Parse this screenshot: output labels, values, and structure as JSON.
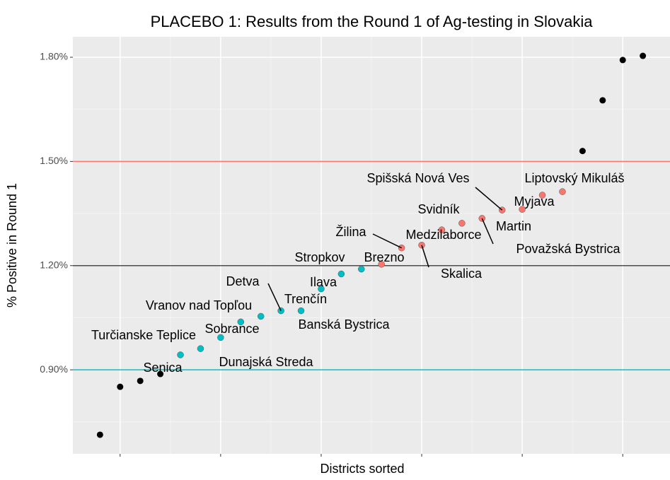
{
  "chart_data": {
    "type": "scatter",
    "title": "PLACEBO 1: Results from the Round 1 of Ag-testing in Slovakia",
    "x_label": "Districts sorted",
    "y_label": "% Positive in Round 1",
    "x": [
      1,
      2,
      3,
      4,
      5,
      6,
      7,
      8,
      9,
      10,
      11,
      12,
      13,
      14,
      15,
      16,
      17,
      18,
      19,
      20,
      21,
      22,
      23,
      24,
      25,
      26,
      27,
      28
    ],
    "values": [
      0.713,
      0.851,
      0.868,
      0.888,
      0.943,
      0.961,
      0.993,
      1.038,
      1.054,
      1.07,
      1.07,
      1.133,
      1.176,
      1.19,
      1.204,
      1.251,
      1.259,
      1.303,
      1.322,
      1.336,
      1.36,
      1.362,
      1.403,
      1.413,
      1.53,
      1.676,
      1.792,
      1.804
    ],
    "colors": [
      "#000000",
      "#000000",
      "#000000",
      "#000000",
      "#00BFC4",
      "#00BFC4",
      "#00BFC4",
      "#00BFC4",
      "#00BFC4",
      "#00BFC4",
      "#00BFC4",
      "#00BFC4",
      "#00BFC4",
      "#00BFC4",
      "#F8766D",
      "#F8766D",
      "#F8766D",
      "#F8766D",
      "#F8766D",
      "#F8766D",
      "#F8766D",
      "#F8766D",
      "#F8766D",
      "#F8766D",
      "#000000",
      "#000000",
      "#000000",
      "#000000"
    ],
    "point_labels": [
      null,
      null,
      null,
      "Senica",
      "Turčianske Teplice",
      "Dunajská Streda",
      "Sobrance",
      "Vranov nad Topľou",
      "Banská Bystrica",
      "Detva",
      "Trenčín",
      "Ilava",
      "Stropkov",
      null,
      "Brezno",
      "Žilina",
      "Skalica",
      "Medzilaborce",
      "Svidník",
      "Považská Bystrica",
      "Spišská Nová Ves",
      "Myjava",
      "Martin",
      "Liptovský Mikuláš",
      null,
      null,
      null,
      null
    ],
    "xlim": [
      -0.35,
      29.35
    ],
    "xticks": [
      2,
      7,
      12,
      17,
      22,
      27
    ],
    "ylim": [
      0.658,
      1.859
    ],
    "yticks": [
      {
        "value": 0.9,
        "label": "0.90%"
      },
      {
        "value": 1.2,
        "label": "1.20%"
      },
      {
        "value": 1.5,
        "label": "1.50%"
      },
      {
        "value": 1.8,
        "label": "1.80%"
      }
    ],
    "hlines": [
      {
        "value": 1.5,
        "color": "#F8766D"
      },
      {
        "value": 1.2,
        "color": "#4d4d4d"
      },
      {
        "value": 0.9,
        "color": "#00BFC4"
      }
    ],
    "grid": true
  }
}
